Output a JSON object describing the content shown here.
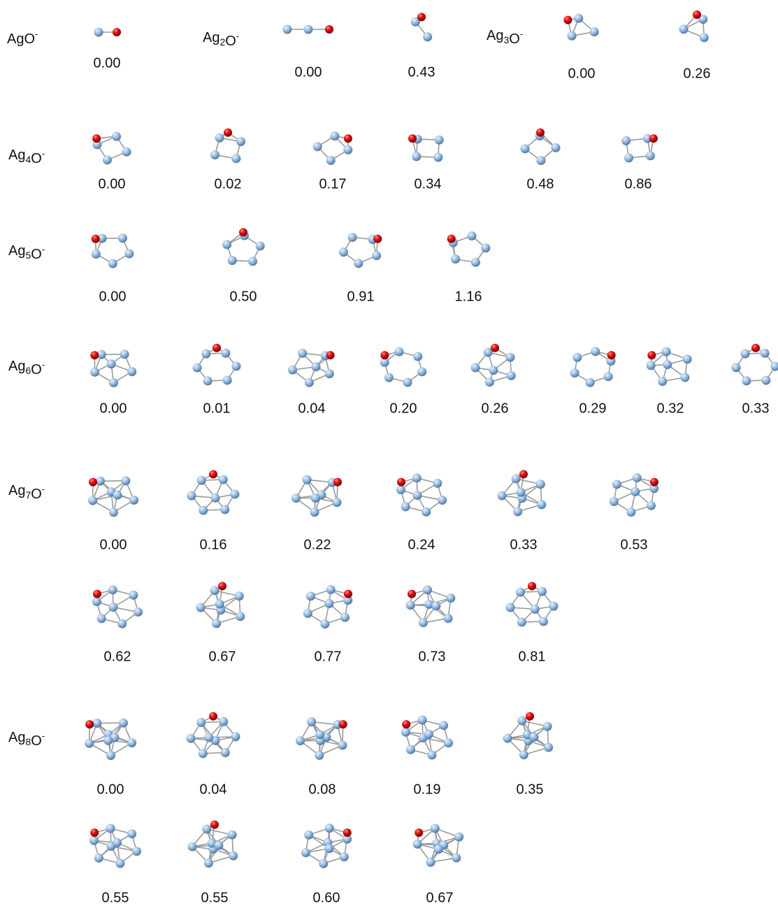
{
  "groups": [
    {
      "label": [
        {
          "t": "AgO"
        },
        {
          "sup": "-"
        }
      ],
      "energies": [
        [
          "0.00"
        ]
      ]
    },
    {
      "label": [
        {
          "t": "Ag"
        },
        {
          "sub": "2"
        },
        {
          "t": "O"
        },
        {
          "sup": "-"
        }
      ],
      "energies": [
        [
          "0.00",
          "0.43"
        ]
      ]
    },
    {
      "label": [
        {
          "t": "Ag"
        },
        {
          "sub": "3"
        },
        {
          "t": "O"
        },
        {
          "sup": "-"
        }
      ],
      "energies": [
        [
          "0.00",
          "0.26"
        ]
      ]
    },
    {
      "label": [
        {
          "t": "Ag"
        },
        {
          "sub": "4"
        },
        {
          "t": "O"
        },
        {
          "sup": "-"
        }
      ],
      "energies": [
        [
          "0.00",
          "0.02",
          "0.17",
          "0.34",
          "0.48",
          "0.86"
        ]
      ]
    },
    {
      "label": [
        {
          "t": "Ag"
        },
        {
          "sub": "5"
        },
        {
          "t": "O"
        },
        {
          "sup": "-"
        }
      ],
      "energies": [
        [
          "0.00",
          "0.50",
          "0.91",
          "1.16"
        ]
      ]
    },
    {
      "label": [
        {
          "t": "Ag"
        },
        {
          "sub": "6"
        },
        {
          "t": "O"
        },
        {
          "sup": "-"
        }
      ],
      "energies": [
        [
          "0.00",
          "0.01",
          "0.04",
          "0.20",
          "0.26",
          "0.29",
          "0.32",
          "0.33"
        ]
      ]
    },
    {
      "label": [
        {
          "t": "Ag"
        },
        {
          "sub": "7"
        },
        {
          "t": "O"
        },
        {
          "sup": "-"
        }
      ],
      "energies": [
        [
          "0.00",
          "0.16",
          "0.22",
          "0.24",
          "0.33",
          "0.53"
        ],
        [
          "0.62",
          "0.67",
          "0.77",
          "0.73",
          "0.81"
        ]
      ]
    },
    {
      "label": [
        {
          "t": "Ag"
        },
        {
          "sub": "8"
        },
        {
          "t": "O"
        },
        {
          "sup": "-"
        }
      ],
      "energies": [
        [
          "0.00",
          "0.04",
          "0.08",
          "0.19",
          "0.35"
        ],
        [
          "0.55",
          "0.55",
          "0.60",
          "0.67"
        ]
      ]
    }
  ]
}
